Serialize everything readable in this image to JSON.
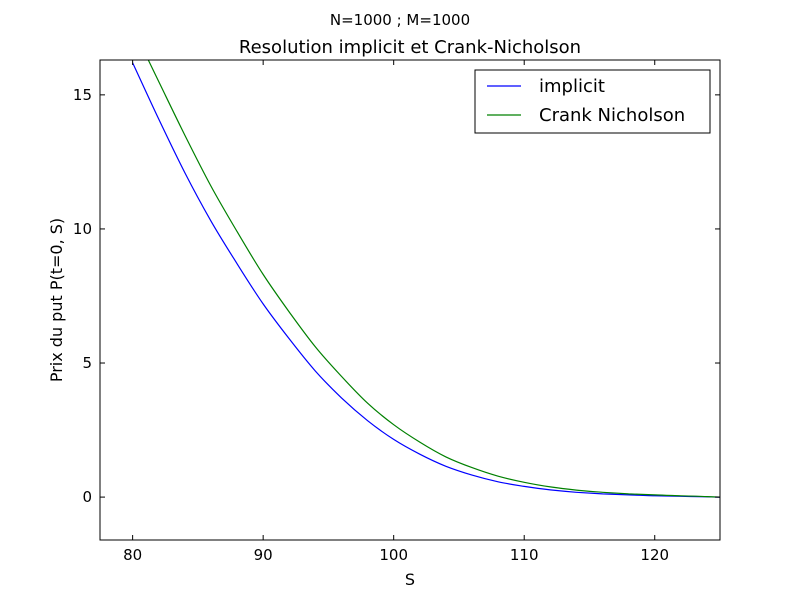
{
  "chart_data": {
    "type": "line",
    "suptitle": "N=1000 ; M=1000",
    "title": "Resolution implicit et Crank-Nicholson",
    "xlabel": "S",
    "ylabel": "Prix du put P(t=0, S)",
    "xlim": [
      77.5,
      125
    ],
    "ylim": [
      -1.6,
      16.3
    ],
    "xticks": [
      80,
      90,
      100,
      110,
      120
    ],
    "yticks": [
      0,
      5,
      10,
      15
    ],
    "grid": false,
    "legend_position": "top-right",
    "series": [
      {
        "name": "implicit",
        "color": "#0000ff",
        "x": [
          80,
          82,
          84,
          86,
          88,
          90,
          92,
          94,
          96,
          98,
          100,
          102,
          104,
          106,
          108,
          110,
          112,
          114,
          116,
          118,
          120,
          122,
          124,
          125
        ],
        "y": [
          16.2,
          14.1,
          12.1,
          10.3,
          8.7,
          7.2,
          5.9,
          4.7,
          3.7,
          2.85,
          2.15,
          1.6,
          1.15,
          0.82,
          0.57,
          0.4,
          0.27,
          0.18,
          0.12,
          0.08,
          0.05,
          0.03,
          0.01,
          0.0
        ]
      },
      {
        "name": "Crank Nicholson",
        "color": "#008000",
        "x": [
          81.2,
          82,
          84,
          86,
          88,
          90,
          92,
          94,
          96,
          98,
          100,
          102,
          104,
          106,
          108,
          110,
          112,
          114,
          116,
          118,
          120,
          122,
          124,
          125
        ],
        "y": [
          16.3,
          15.5,
          13.5,
          11.6,
          9.9,
          8.3,
          6.9,
          5.6,
          4.5,
          3.5,
          2.7,
          2.05,
          1.5,
          1.1,
          0.78,
          0.55,
          0.38,
          0.26,
          0.18,
          0.12,
          0.08,
          0.05,
          0.02,
          0.0
        ]
      }
    ]
  }
}
